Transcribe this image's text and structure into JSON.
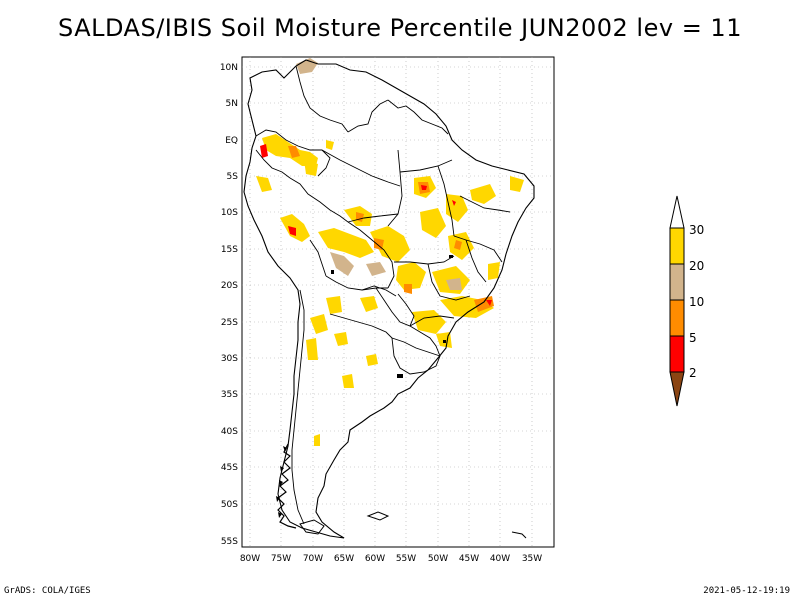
{
  "title": "SALDAS/IBIS Soil Moisture Percentile JUN2002 lev = 11",
  "footer": {
    "left": "GrADS: COLA/IGES",
    "right": "2021-05-12-19:19"
  },
  "map": {
    "lon_range": [
      -80,
      -30
    ],
    "lat_range": [
      -56,
      12
    ],
    "lat_labels": [
      "10N",
      "5N",
      "EQ",
      "5S",
      "10S",
      "15S",
      "20S",
      "25S",
      "30S",
      "35S",
      "40S",
      "45S",
      "50S",
      "55S"
    ],
    "lon_labels": [
      "80W",
      "75W",
      "70W",
      "65W",
      "60W",
      "55W",
      "50W",
      "45W",
      "40W",
      "35W"
    ],
    "gridlines": "dotted"
  },
  "legend": {
    "labels": [
      "30",
      "20",
      "10",
      "5",
      "2"
    ],
    "colors": {
      "above_30": "#ffffff",
      "20_30": "#ffd700",
      "10_20": "#d2b48c",
      "5_10": "#ff8c00",
      "2_5": "#ff0000",
      "below_2": "#8b4513"
    }
  }
}
